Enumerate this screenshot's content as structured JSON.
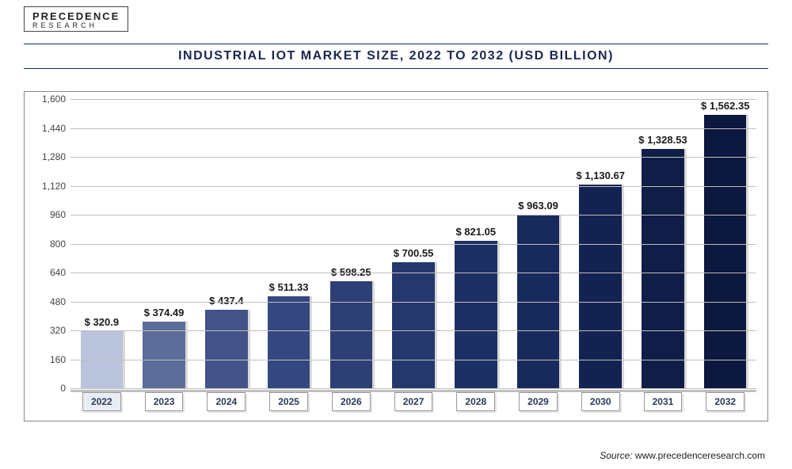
{
  "logo": {
    "line1": "PRECEDENCE",
    "line2": "RESEARCH"
  },
  "title": "INDUSTRIAL IOT MARKET SIZE, 2022 TO 2032 (USD BILLION)",
  "source_label": "Source:",
  "source_text": "www.precedenceresearch.com",
  "chart": {
    "type": "bar",
    "ylim": [
      0,
      1600
    ],
    "ytick_step": 160,
    "yticks": [
      0,
      160,
      320,
      480,
      640,
      800,
      960,
      1120,
      1280,
      1440,
      1600
    ],
    "grid_color": "#bfbfbf",
    "background_color": "#ffffff",
    "value_prefix": "$ ",
    "series": [
      {
        "year": "2022",
        "value": 320.9,
        "label": "$ 320.9",
        "color": "#b9c3dc"
      },
      {
        "year": "2023",
        "value": 374.49,
        "label": "$ 374.49",
        "color": "#5d6d99"
      },
      {
        "year": "2024",
        "value": 437.4,
        "label": "$ 437.4",
        "color": "#43538a"
      },
      {
        "year": "2025",
        "value": 511.33,
        "label": "$ 511.33",
        "color": "#34477f"
      },
      {
        "year": "2026",
        "value": 598.25,
        "label": "$ 598.25",
        "color": "#2d3f75"
      },
      {
        "year": "2027",
        "value": 700.55,
        "label": "$ 700.55",
        "color": "#24386e"
      },
      {
        "year": "2028",
        "value": 821.05,
        "label": "$ 821.05",
        "color": "#1d3064"
      },
      {
        "year": "2029",
        "value": 963.09,
        "label": "$ 963.09",
        "color": "#182a5b"
      },
      {
        "year": "2030",
        "value": 1130.67,
        "label": "$ 1,130.67",
        "color": "#132351"
      },
      {
        "year": "2031",
        "value": 1328.53,
        "label": "$ 1,328.53",
        "color": "#0f1d47"
      },
      {
        "year": "2032",
        "value": 1562.35,
        "label": "$ 1,562.35",
        "color": "#0c183e"
      }
    ]
  }
}
